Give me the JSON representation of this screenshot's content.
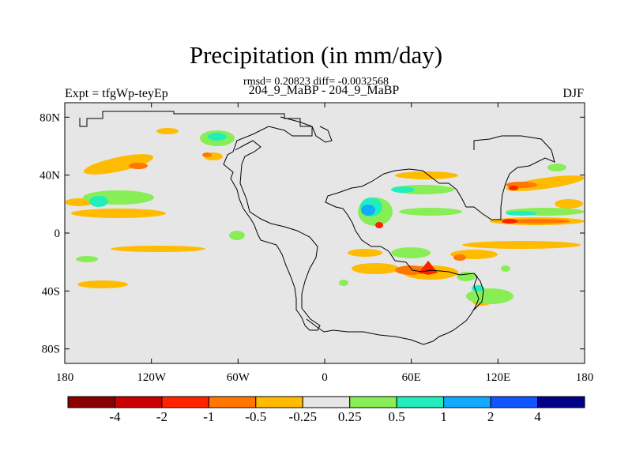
{
  "chart_data": {
    "type": "heatmap",
    "title": "Precipitation (in mm/day)",
    "stats_line": "rmsd= 0.20823 diff= -0.0032568",
    "subtitle": "204_9_MaBP - 204_9_MaBP",
    "left_label": "Expt = tfgWp-teyEp",
    "right_label": "DJF",
    "x_ticks": [
      "180",
      "120W",
      "60W",
      "0",
      "60E",
      "120E",
      "180"
    ],
    "y_ticks": [
      "80N",
      "40N",
      "0",
      "40S",
      "80S"
    ],
    "xlim": [
      -180,
      180
    ],
    "ylim": [
      -90,
      90
    ],
    "colorbar": {
      "colors": [
        "#8b0000",
        "#cc0000",
        "#ff2200",
        "#ff7700",
        "#ffbb00",
        "#e6e6e6",
        "#88ee55",
        "#22eebb",
        "#11aaff",
        "#1155ff",
        "#000088"
      ],
      "labels": [
        "-4",
        "-2",
        "-1",
        "-0.5",
        "-0.25",
        "0.25",
        "0.5",
        "1",
        "2",
        "4"
      ]
    },
    "anomaly_regions_approx": [
      {
        "lon": -150,
        "lat": 45,
        "level": "-0.25"
      },
      {
        "lon": -145,
        "lat": 8,
        "level": "0.5"
      },
      {
        "lon": -120,
        "lat": 12,
        "level": "-0.25"
      },
      {
        "lon": -65,
        "lat": 65,
        "level": "0.5"
      },
      {
        "lon": 30,
        "lat": 15,
        "level": "1"
      },
      {
        "lon": 40,
        "lat": 5,
        "level": "-1"
      },
      {
        "lon": 72,
        "lat": -25,
        "level": "-1"
      },
      {
        "lon": 140,
        "lat": 30,
        "level": "-0.25"
      },
      {
        "lon": 130,
        "lat": 8,
        "level": "-1"
      },
      {
        "lon": 140,
        "lat": -15,
        "level": "-0.25"
      }
    ]
  }
}
